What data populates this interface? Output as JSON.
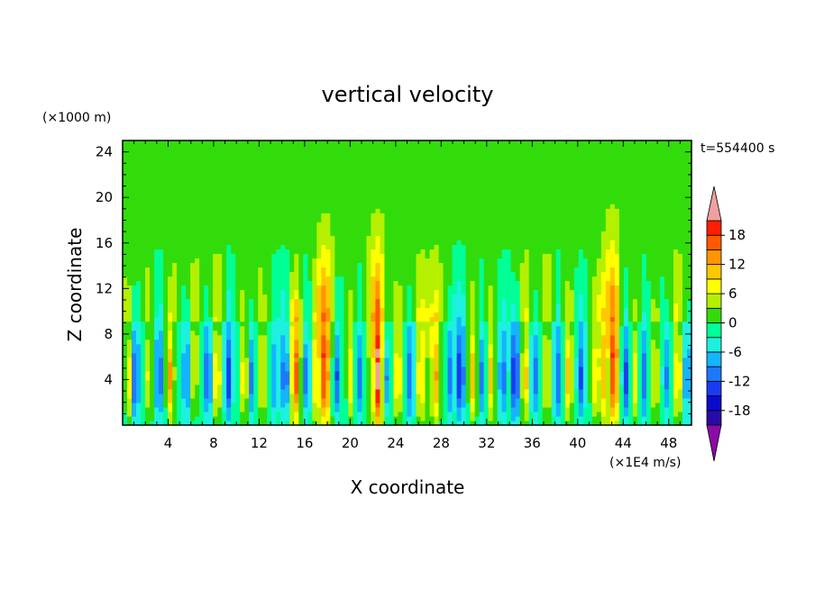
{
  "chart_data": {
    "type": "heatmap",
    "title": "vertical velocity",
    "xlabel": "X coordinate",
    "ylabel": "Z coordinate",
    "y_unit": "(×1000 m)",
    "time_label": "t=554400 s",
    "x_ticks": [
      4,
      8,
      12,
      16,
      20,
      24,
      28,
      32,
      36,
      40,
      44,
      48
    ],
    "y_ticks": [
      4,
      8,
      12,
      16,
      20,
      24
    ],
    "xlim": [
      0,
      50
    ],
    "ylim": [
      0,
      25
    ],
    "colorbar": {
      "unit": "(×1E4 m/s)",
      "levels": [
        -21,
        -18,
        -15,
        -12,
        -9,
        -6,
        -3,
        0,
        3,
        6,
        9,
        12,
        15,
        18,
        21
      ],
      "tick_labels": [
        "18",
        "12",
        "6",
        "0",
        "-6",
        "-12",
        "-18"
      ],
      "tick_values": [
        18,
        12,
        6,
        0,
        -6,
        -12,
        -18
      ],
      "colors": [
        "#5a0fa6",
        "#2a0aa6",
        "#0a0acc",
        "#1a3cf0",
        "#1e78ff",
        "#14b4ff",
        "#1ef0e0",
        "#00ff96",
        "#32dc0a",
        "#b4f000",
        "#ffff00",
        "#ffc800",
        "#ff9600",
        "#ff5a00",
        "#ff1e00",
        "#dc0a0a"
      ],
      "under_color": "#8c0aa6",
      "over_color": "#f0a0a0"
    },
    "columns": [
      {
        "x": 0.6,
        "peak": 4,
        "amp": 10,
        "sign": 1
      },
      {
        "x": 1.1,
        "peak": 4,
        "amp": -14,
        "sign": -1
      },
      {
        "x": 2.3,
        "peak": 4,
        "amp": 8
      },
      {
        "x": 3.2,
        "peak": 4,
        "amp": -12
      },
      {
        "x": 4.2,
        "peak": 4,
        "amp": 14
      },
      {
        "x": 5.6,
        "peak": 4,
        "amp": -10
      },
      {
        "x": 6.3,
        "peak": 5,
        "amp": 9
      },
      {
        "x": 7.5,
        "peak": 4,
        "amp": -12
      },
      {
        "x": 8.3,
        "peak": 4,
        "amp": 12
      },
      {
        "x": 9.3,
        "peak": 4,
        "amp": -13
      },
      {
        "x": 10.7,
        "peak": 4,
        "amp": 11
      },
      {
        "x": 11.3,
        "peak": 4,
        "amp": -9
      },
      {
        "x": 12.3,
        "peak": 4,
        "amp": 10
      },
      {
        "x": 13.4,
        "peak": 4,
        "amp": -8
      },
      {
        "x": 14.3,
        "peak": 4,
        "amp": -13
      },
      {
        "x": 15.2,
        "peak": 4,
        "amp": 15
      },
      {
        "x": 16.2,
        "peak": 4,
        "amp": -12
      },
      {
        "x": 17.0,
        "peak": 4,
        "amp": 9
      },
      {
        "x": 17.8,
        "peak": 4,
        "amp": 16
      },
      {
        "x": 18.8,
        "peak": 4,
        "amp": -12
      },
      {
        "x": 20.1,
        "peak": 4,
        "amp": 10
      },
      {
        "x": 20.8,
        "peak": 4,
        "amp": -10
      },
      {
        "x": 22.4,
        "peak": 4,
        "amp": 18
      },
      {
        "x": 23.2,
        "peak": 4,
        "amp": -10
      },
      {
        "x": 24.2,
        "peak": 4,
        "amp": 12
      },
      {
        "x": 25.3,
        "peak": 4,
        "amp": -11
      },
      {
        "x": 26.2,
        "peak": 4,
        "amp": 11
      },
      {
        "x": 27.5,
        "peak": 4,
        "amp": 12
      },
      {
        "x": 28.8,
        "peak": 4,
        "amp": -9
      },
      {
        "x": 29.7,
        "peak": 4,
        "amp": -15
      },
      {
        "x": 30.8,
        "peak": 4,
        "amp": 13
      },
      {
        "x": 31.6,
        "peak": 4,
        "amp": -9
      },
      {
        "x": 32.4,
        "peak": 4,
        "amp": 12
      },
      {
        "x": 33.4,
        "peak": 4,
        "amp": -10
      },
      {
        "x": 34.5,
        "peak": 4,
        "amp": -16
      },
      {
        "x": 35.4,
        "peak": 4,
        "amp": 12
      },
      {
        "x": 36.2,
        "peak": 4,
        "amp": -10
      },
      {
        "x": 37.3,
        "peak": 4,
        "amp": 10
      },
      {
        "x": 38.2,
        "peak": 4,
        "amp": -11
      },
      {
        "x": 39.2,
        "peak": 4,
        "amp": 13
      },
      {
        "x": 40.3,
        "peak": 4,
        "amp": -11
      },
      {
        "x": 41.5,
        "peak": 4,
        "amp": 9
      },
      {
        "x": 42.2,
        "peak": 4,
        "amp": 10
      },
      {
        "x": 43.2,
        "peak": 4,
        "amp": 16
      },
      {
        "x": 44.2,
        "peak": 4,
        "amp": -13
      },
      {
        "x": 45.1,
        "peak": 4,
        "amp": 10
      },
      {
        "x": 45.8,
        "peak": 4,
        "amp": -10
      },
      {
        "x": 46.8,
        "peak": 4,
        "amp": 9
      },
      {
        "x": 47.8,
        "peak": 4,
        "amp": -8
      },
      {
        "x": 48.8,
        "peak": 4,
        "amp": 12
      },
      {
        "x": 49.6,
        "peak": 4,
        "amp": -9
      }
    ],
    "plumes": [
      {
        "x": 17.8,
        "top": 21,
        "amp": 8
      },
      {
        "x": 22.4,
        "top": 21,
        "amp": 9
      },
      {
        "x": 43.0,
        "top": 22,
        "amp": 8
      },
      {
        "x": 15.2,
        "top": 12,
        "amp": 5
      },
      {
        "x": 27.0,
        "top": 11,
        "amp": 4
      }
    ],
    "stripes": [
      {
        "x0": 0,
        "x1": 2.5,
        "val": 1.5
      },
      {
        "x0": 4.5,
        "x1": 6,
        "val": 1.5
      },
      {
        "x0": 6,
        "x1": 9,
        "val": 2
      },
      {
        "x0": 11,
        "x1": 12.5,
        "val": 1.5
      },
      {
        "x0": 14.5,
        "x1": 15.5,
        "val": 1.5
      },
      {
        "x0": 24.5,
        "x1": 29,
        "val": 2
      },
      {
        "x0": 34,
        "x1": 38,
        "val": 2
      },
      {
        "x0": 47.5,
        "x1": 50,
        "val": 2
      }
    ]
  }
}
